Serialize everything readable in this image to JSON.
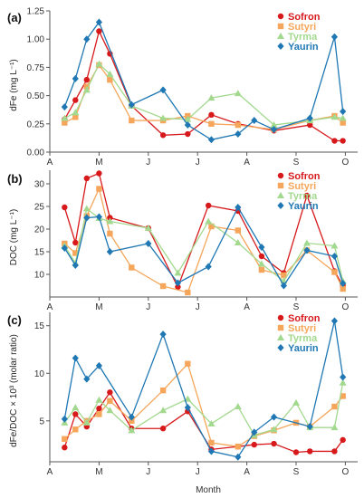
{
  "chart_data": [
    {
      "type": "line",
      "panel_label": "(a)",
      "ylabel": "dFe (mg L⁻¹)",
      "ylim": [
        0,
        1.25
      ],
      "yticks": [
        "0.00",
        "0.25",
        "0.50",
        "0.75",
        "1.00",
        "1.25"
      ],
      "grid": false,
      "legend_position": "top-right",
      "series": [
        {
          "name": "Sofron",
          "color": "#d7191c",
          "marker": "circle",
          "x": [
            0.3,
            0.52,
            0.75,
            1.0,
            1.22,
            1.66,
            2.3,
            2.8,
            3.28,
            3.82,
            4.55,
            5.28,
            5.78,
            5.95
          ],
          "y": [
            0.29,
            0.46,
            0.64,
            1.07,
            0.87,
            0.41,
            0.15,
            0.16,
            0.33,
            0.25,
            0.19,
            0.24,
            0.1,
            0.1
          ]
        },
        {
          "name": "Sutyri",
          "color": "#f5a65b",
          "marker": "square",
          "x": [
            0.3,
            0.52,
            0.75,
            1.0,
            1.22,
            1.66,
            2.3,
            2.8,
            3.28,
            3.82,
            4.55,
            5.28,
            5.78,
            5.95
          ],
          "y": [
            0.26,
            0.31,
            0.58,
            0.77,
            0.64,
            0.28,
            0.28,
            0.32,
            0.25,
            0.24,
            0.2,
            0.28,
            0.32,
            0.26
          ]
        },
        {
          "name": "Tyrma",
          "color": "#a3d98f",
          "marker": "triangle",
          "x": [
            0.3,
            0.52,
            0.75,
            1.0,
            1.22,
            1.66,
            2.3,
            2.8,
            3.28,
            3.82,
            4.55,
            5.28,
            5.78,
            5.95
          ],
          "y": [
            0.3,
            0.35,
            0.55,
            0.78,
            0.69,
            0.41,
            0.3,
            0.29,
            0.48,
            0.52,
            0.24,
            0.28,
            0.31,
            0.3
          ]
        },
        {
          "name": "Yaurin",
          "color": "#1f78b4",
          "marker": "diamond",
          "x": [
            0.3,
            0.52,
            0.75,
            1.0,
            1.66,
            2.3,
            2.8,
            3.28,
            3.82,
            4.15,
            4.55,
            5.28,
            5.78,
            5.95
          ],
          "y": [
            0.4,
            0.65,
            1.0,
            1.15,
            0.42,
            0.55,
            0.24,
            0.11,
            0.16,
            0.28,
            0.2,
            0.3,
            1.02,
            0.36
          ]
        }
      ]
    },
    {
      "type": "line",
      "panel_label": "(b)",
      "ylabel": "DOC (mg L⁻¹)",
      "ylim": [
        5,
        33
      ],
      "yticks": [
        "10",
        "15",
        "20",
        "25",
        "30"
      ],
      "grid": false,
      "legend_position": "top-right",
      "series": [
        {
          "name": "Sofron",
          "color": "#d7191c",
          "marker": "circle",
          "x": [
            0.3,
            0.52,
            0.75,
            1.0,
            1.22,
            2.0,
            2.6,
            3.22,
            3.82,
            4.3,
            4.75,
            5.22,
            5.78,
            5.95
          ],
          "y": [
            24.8,
            17.0,
            31.2,
            32.3,
            22.5,
            20.2,
            7.2,
            25.2,
            24.0,
            14.0,
            10.3,
            27.4,
            10.7,
            7.5
          ]
        },
        {
          "name": "Sutyri",
          "color": "#f5a65b",
          "marker": "square",
          "x": [
            0.3,
            0.52,
            0.75,
            1.0,
            1.22,
            1.66,
            2.3,
            2.8,
            3.28,
            3.82,
            4.3,
            4.75,
            5.22,
            5.78,
            5.95
          ],
          "y": [
            16.8,
            14.7,
            22.9,
            28.9,
            19.0,
            11.5,
            7.4,
            6.0,
            20.6,
            19.7,
            11.0,
            9.8,
            15.3,
            10.5,
            6.8
          ]
        },
        {
          "name": "Tyrma",
          "color": "#a3d98f",
          "marker": "triangle",
          "x": [
            0.3,
            0.52,
            0.75,
            1.0,
            1.22,
            2.0,
            2.6,
            3.22,
            3.82,
            4.3,
            4.75,
            5.22,
            5.78,
            5.95
          ],
          "y": [
            16.3,
            12.5,
            24.5,
            22.4,
            21.7,
            20.2,
            10.3,
            21.7,
            17.0,
            12.3,
            8.5,
            16.9,
            16.3,
            8.5
          ]
        },
        {
          "name": "Yaurin",
          "color": "#1f78b4",
          "marker": "diamond",
          "x": [
            0.3,
            0.52,
            0.75,
            1.0,
            1.22,
            2.0,
            2.6,
            3.22,
            3.82,
            4.3,
            4.75,
            5.22,
            5.78,
            5.95
          ],
          "y": [
            15.8,
            12.0,
            22.5,
            22.7,
            15.0,
            16.8,
            8.1,
            11.7,
            24.8,
            16.0,
            7.5,
            15.3,
            14.0,
            8.0
          ]
        }
      ]
    },
    {
      "type": "line",
      "panel_label": "(c)",
      "ylabel": "dFe/DOC × 10³ (molar ratio)",
      "ylim": [
        0.7,
        16.4
      ],
      "yticks": [
        "5",
        "10",
        "15"
      ],
      "grid": false,
      "legend_position": "top-right",
      "series": [
        {
          "name": "Sofron",
          "color": "#d7191c",
          "marker": "circle",
          "x": [
            0.3,
            0.52,
            0.75,
            1.0,
            1.22,
            1.66,
            2.3,
            2.8,
            3.28,
            3.82,
            4.15,
            4.55,
            5.0,
            5.28,
            5.78,
            5.95
          ],
          "y": [
            2.2,
            5.7,
            4.4,
            6.3,
            8.0,
            4.2,
            4.2,
            6.0,
            2.0,
            2.3,
            2.5,
            2.6,
            1.7,
            1.8,
            1.8,
            3.0
          ]
        },
        {
          "name": "Sutyri",
          "color": "#f5a65b",
          "marker": "square",
          "x": [
            0.3,
            0.52,
            0.75,
            1.0,
            1.22,
            1.66,
            2.3,
            2.8,
            3.28,
            3.82,
            4.15,
            4.55,
            5.0,
            5.28,
            5.78,
            5.95
          ],
          "y": [
            3.1,
            4.1,
            5.0,
            5.7,
            7.1,
            5.0,
            8.2,
            11.0,
            2.7,
            2.3,
            3.4,
            4.0,
            4.8,
            4.4,
            6.5,
            7.6
          ]
        },
        {
          "name": "Tyrma",
          "color": "#a3d98f",
          "marker": "triangle",
          "x": [
            0.3,
            0.52,
            0.75,
            1.0,
            1.22,
            1.66,
            2.3,
            2.8,
            3.28,
            3.82,
            4.15,
            4.55,
            5.0,
            5.28,
            5.78,
            5.95
          ],
          "y": [
            4.8,
            6.4,
            4.8,
            7.2,
            6.1,
            4.0,
            6.1,
            7.3,
            4.7,
            6.5,
            3.5,
            4.1,
            6.9,
            4.3,
            4.3,
            9.0
          ]
        },
        {
          "name": "Yaurin",
          "color": "#1f78b4",
          "marker": "diamond",
          "x": [
            0.3,
            0.52,
            0.75,
            1.0,
            1.66,
            2.3,
            2.8,
            3.28,
            3.82,
            4.15,
            4.55,
            5.28,
            5.78,
            5.95
          ],
          "y": [
            5.2,
            11.6,
            9.4,
            10.8,
            5.4,
            14.1,
            6.4,
            1.8,
            1.2,
            3.8,
            5.4,
            4.4,
            15.5,
            9.6
          ]
        }
      ]
    }
  ],
  "x_axis": {
    "ticks": [
      {
        "label": "A",
        "pos": 0
      },
      {
        "label": "M",
        "pos": 1
      },
      {
        "label": "J",
        "pos": 2
      },
      {
        "label": "J",
        "pos": 3
      },
      {
        "label": "A",
        "pos": 4
      },
      {
        "label": "S",
        "pos": 5
      },
      {
        "label": "O",
        "pos": 6
      }
    ],
    "xlim": [
      0,
      6.25
    ],
    "xlabel": "Month"
  },
  "legend": [
    "Sofron",
    "Sutyri",
    "Tyrma",
    "Yaurin"
  ]
}
